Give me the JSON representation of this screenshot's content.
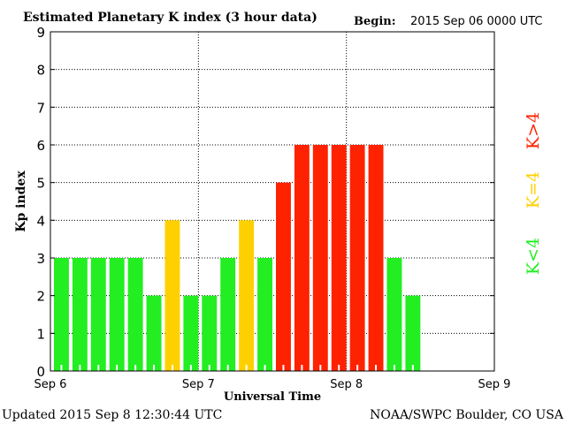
{
  "header": {
    "title": "Estimated Planetary K index (3 hour data)",
    "begin_label": "Begin:",
    "begin_value": "2015 Sep 06 0000 UTC"
  },
  "footer": {
    "updated": "Updated 2015 Sep  8 12:30:44 UTC",
    "source": "NOAA/SWPC Boulder, CO USA"
  },
  "legend": {
    "green_label": "K<4",
    "yellow_label": "K=4",
    "red_label": "K>4"
  },
  "colors": {
    "green": "#22ee22",
    "yellow": "#ffd000",
    "red": "#ff2200",
    "grid": "#000000",
    "background": "#ffffff"
  },
  "chart_data": {
    "type": "bar",
    "ylabel": "Kp index",
    "xlabel": "Universal Time",
    "ylim": [
      0,
      9
    ],
    "yticks": [
      "0",
      "1",
      "2",
      "3",
      "4",
      "5",
      "6",
      "7",
      "8",
      "9"
    ],
    "x_tick_labels": [
      "Sep 6",
      "Sep 7",
      "Sep 8",
      "Sep 9"
    ],
    "bar_hours": 3,
    "total_days": 3,
    "grid": "dotted",
    "values": [
      3,
      3,
      3,
      3,
      3,
      2,
      4,
      2,
      2,
      3,
      4,
      3,
      5,
      6,
      6,
      6,
      6,
      6,
      3,
      2
    ]
  }
}
